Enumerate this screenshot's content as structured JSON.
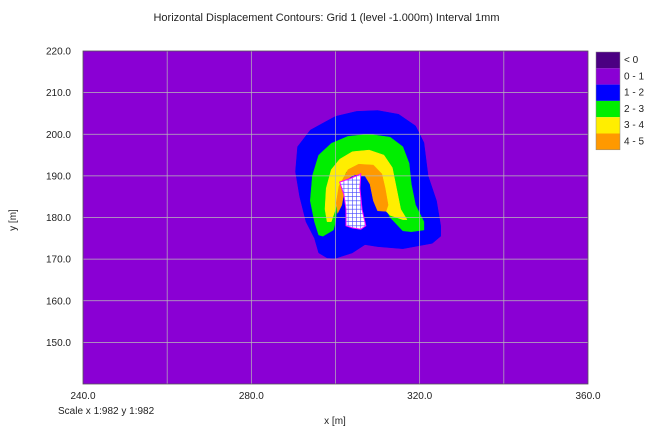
{
  "title": "Horizontal Displacement Contours: Grid 1 (level -1.000m) Interval 1mm",
  "scale": "Scale x 1:982  y 1:982",
  "colors": {
    "background_fill": "#8a00d4",
    "grid": "#b8b8b8",
    "mesh": "#4444ff"
  },
  "chart_data": {
    "type": "heatmap",
    "title": "Horizontal Displacement Contours: Grid 1 (level -1.000m) Interval 1mm",
    "xlabel": "x [m]",
    "ylabel": "y [m]",
    "xlim": [
      240.0,
      360.0
    ],
    "ylim": [
      140.0,
      220.0
    ],
    "grid": true,
    "x_ticks": [
      "240.0",
      "280.0",
      "320.0",
      "360.0"
    ],
    "y_ticks": [
      "150.0",
      "160.0",
      "170.0",
      "180.0",
      "190.0",
      "200.0",
      "210.0",
      "220.0"
    ],
    "legend_position": "right",
    "legend": [
      {
        "label": "< 0",
        "color": "#4b0082"
      },
      {
        "label": "0 - 1",
        "color": "#8a00d4"
      },
      {
        "label": "1 - 2",
        "color": "#0000ff"
      },
      {
        "label": "2 - 3",
        "color": "#00ee00"
      },
      {
        "label": "3 - 4",
        "color": "#ffee00"
      },
      {
        "label": "4 - 5",
        "color": "#ff9900"
      }
    ],
    "contours": [
      {
        "band": "1 - 2",
        "color": "#0000ff",
        "outline": [
          [
            298,
            203.2
          ],
          [
            300,
            204.3
          ],
          [
            305,
            205.5
          ],
          [
            310,
            205.7
          ],
          [
            315,
            204.8
          ],
          [
            319,
            202.0
          ],
          [
            321,
            198.0
          ],
          [
            322,
            190.0
          ],
          [
            324,
            184.0
          ],
          [
            325,
            178.0
          ],
          [
            325,
            175.5
          ],
          [
            323,
            173.8
          ],
          [
            316,
            172.5
          ],
          [
            310,
            173.0
          ],
          [
            307,
            173.5
          ],
          [
            304,
            171.5
          ],
          [
            300,
            170.2
          ],
          [
            298,
            170.3
          ],
          [
            296,
            171.5
          ],
          [
            295,
            175.0
          ],
          [
            293,
            179.0
          ],
          [
            291.5,
            185.0
          ],
          [
            290.5,
            191.0
          ],
          [
            291.0,
            197.0
          ],
          [
            294,
            201.0
          ]
        ]
      },
      {
        "band": "2 - 3",
        "color": "#00ee00",
        "outline": [
          [
            299,
            197.8
          ],
          [
            303,
            199.5
          ],
          [
            308,
            200.0
          ],
          [
            313,
            199.3
          ],
          [
            316,
            197.0
          ],
          [
            317.5,
            193.0
          ],
          [
            318,
            188.0
          ],
          [
            319,
            183.0
          ],
          [
            321,
            179.0
          ],
          [
            321,
            177.0
          ],
          [
            318,
            176.6
          ],
          [
            316,
            176.8
          ],
          [
            313,
            180.0
          ],
          [
            311,
            184.0
          ],
          [
            310,
            189.0
          ],
          [
            309,
            192.5
          ],
          [
            306,
            193.2
          ],
          [
            303,
            192.0
          ],
          [
            302,
            189.0
          ],
          [
            300.5,
            183.5
          ],
          [
            300,
            179.0
          ],
          [
            299.5,
            177.0
          ],
          [
            297,
            175.5
          ],
          [
            296,
            175.8
          ],
          [
            295,
            179.0
          ],
          [
            294,
            184.0
          ],
          [
            294.5,
            190.0
          ],
          [
            296,
            195.0
          ]
        ]
      },
      {
        "band": "3 - 4",
        "color": "#ffee00",
        "outline": [
          [
            301,
            194.0
          ],
          [
            304,
            195.8
          ],
          [
            308,
            196.2
          ],
          [
            311.5,
            195.0
          ],
          [
            313.5,
            192.0
          ],
          [
            314.5,
            187.0
          ],
          [
            315.5,
            182.0
          ],
          [
            317,
            179.5
          ],
          [
            316,
            179.5
          ],
          [
            313,
            180.5
          ],
          [
            310.5,
            183.0
          ],
          [
            309.5,
            187.5
          ],
          [
            308.5,
            190.5
          ],
          [
            306,
            191.8
          ],
          [
            302.5,
            191.0
          ],
          [
            301,
            187.0
          ],
          [
            300,
            182.0
          ],
          [
            299,
            179.0
          ],
          [
            298,
            179.0
          ],
          [
            297.5,
            182.0
          ],
          [
            297.8,
            187.0
          ],
          [
            299,
            191.5
          ]
        ]
      },
      {
        "band": "4 - 5",
        "color": "#ff9900",
        "outline": [
          [
            303,
            191.5
          ],
          [
            305.5,
            192.8
          ],
          [
            309,
            192.6
          ],
          [
            311,
            190.5
          ],
          [
            311.8,
            187.0
          ],
          [
            312.5,
            183.0
          ],
          [
            312,
            181.5
          ],
          [
            310,
            181.6
          ],
          [
            309,
            184.0
          ],
          [
            308.2,
            188.0
          ],
          [
            307,
            190.0
          ],
          [
            304.5,
            190.3
          ],
          [
            302.5,
            189.0
          ],
          [
            302,
            186.0
          ],
          [
            301.5,
            183.0
          ],
          [
            300.5,
            181.0
          ],
          [
            300.2,
            183.5
          ],
          [
            300.8,
            187.5
          ]
        ]
      }
    ],
    "excavation_outline": [
      [
        301,
        188.5
      ],
      [
        303.8,
        189.5
      ],
      [
        306,
        190.5
      ],
      [
        305.8,
        187.0
      ],
      [
        306.3,
        182.0
      ],
      [
        307.2,
        178.0
      ],
      [
        306,
        177.2
      ],
      [
        304,
        177.5
      ],
      [
        302.5,
        178.0
      ],
      [
        302.5,
        182.0
      ],
      [
        302,
        185.5
      ]
    ],
    "mesh": {
      "x_range": [
        301,
        307
      ],
      "y_range": [
        177,
        191
      ],
      "spacing": 1
    }
  }
}
